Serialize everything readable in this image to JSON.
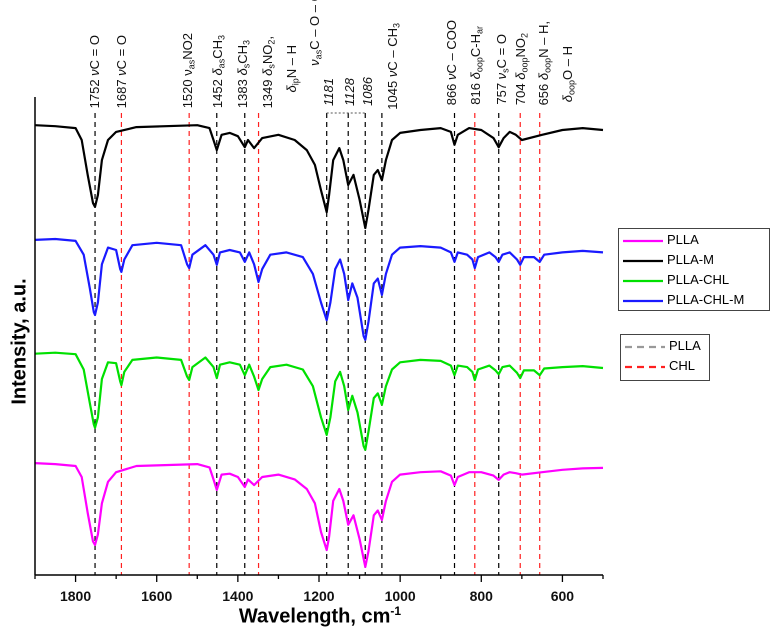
{
  "chart_data": {
    "type": "line",
    "xlabel": "Wavelength, cm",
    "xlabel_superscript": "-1",
    "ylabel": "Intensity, a.u.",
    "xlim": [
      1900,
      500
    ],
    "x_reversed": true,
    "ylim": [
      0,
      100
    ],
    "x_ticks": [
      "1800",
      "1600",
      "1400",
      "1200",
      "1000",
      "800",
      "600"
    ],
    "grid": false,
    "legend_placement": "right",
    "series": [
      {
        "name": "PLLA",
        "color": "#ff00ff",
        "x": [
          1900,
          1850,
          1800,
          1785,
          1770,
          1757,
          1752,
          1745,
          1735,
          1720,
          1700,
          1650,
          1500,
          1470,
          1460,
          1452,
          1440,
          1420,
          1400,
          1383,
          1375,
          1360,
          1340,
          1300,
          1260,
          1230,
          1210,
          1195,
          1181,
          1175,
          1165,
          1150,
          1140,
          1128,
          1115,
          1100,
          1086,
          1078,
          1065,
          1055,
          1045,
          1035,
          1020,
          1000,
          950,
          900,
          875,
          866,
          858,
          830,
          800,
          770,
          757,
          745,
          730,
          715,
          700,
          650,
          600,
          550,
          500
        ],
        "y": [
          23.4,
          23.2,
          22.8,
          20.5,
          13,
          7,
          6.3,
          8.5,
          15,
          19.5,
          21.5,
          22.8,
          23.2,
          22.5,
          20,
          17.8,
          21,
          21.2,
          20.5,
          18.4,
          20,
          18.8,
          20.5,
          21,
          20,
          18,
          15,
          9,
          5.2,
          8,
          15.5,
          18,
          15.5,
          10.5,
          12.5,
          7.5,
          1.7,
          5,
          12.5,
          13.5,
          11.5,
          15.5,
          19.5,
          21,
          21.5,
          21.7,
          20.8,
          18.8,
          20.5,
          21.5,
          21.5,
          20.8,
          19.9,
          21,
          21.5,
          21.3,
          21,
          21.5,
          22,
          22.3,
          22.4
        ]
      },
      {
        "name": "PLLA-M",
        "color": "#000000",
        "x": [
          1900,
          1850,
          1800,
          1785,
          1770,
          1757,
          1752,
          1745,
          1735,
          1720,
          1700,
          1650,
          1500,
          1470,
          1460,
          1452,
          1440,
          1420,
          1400,
          1383,
          1375,
          1360,
          1340,
          1300,
          1260,
          1230,
          1210,
          1195,
          1181,
          1175,
          1165,
          1150,
          1140,
          1128,
          1115,
          1100,
          1086,
          1078,
          1065,
          1055,
          1045,
          1035,
          1020,
          1000,
          950,
          900,
          875,
          866,
          858,
          830,
          800,
          770,
          757,
          745,
          730,
          715,
          700,
          650,
          600,
          550,
          500
        ],
        "y": [
          94.1,
          93.9,
          93.5,
          91,
          83.7,
          77.8,
          77,
          79.5,
          86.8,
          91,
          92.7,
          93.7,
          94.1,
          93.5,
          91,
          88.9,
          92.1,
          92.5,
          91.8,
          89.5,
          91,
          89.3,
          91.4,
          92.1,
          91,
          88.9,
          85.8,
          80.5,
          75.9,
          79.5,
          86.8,
          89.3,
          86.8,
          81.6,
          83.7,
          78.5,
          72.6,
          76.4,
          83.7,
          84.7,
          82.6,
          86.8,
          91,
          92.5,
          93.1,
          93.5,
          92.7,
          90,
          92.1,
          93.5,
          93.1,
          91.4,
          89.5,
          91.4,
          92.7,
          92.1,
          91,
          92.1,
          93.1,
          93.5,
          93.1
        ]
      },
      {
        "name": "PLLA-CHL",
        "color": "#00e000",
        "x": [
          1900,
          1850,
          1800,
          1780,
          1765,
          1755,
          1752,
          1745,
          1735,
          1720,
          1700,
          1690,
          1687,
          1680,
          1660,
          1600,
          1540,
          1525,
          1520,
          1512,
          1480,
          1460,
          1452,
          1444,
          1420,
          1395,
          1383,
          1372,
          1360,
          1349,
          1340,
          1320,
          1280,
          1240,
          1215,
          1195,
          1181,
          1172,
          1160,
          1148,
          1138,
          1128,
          1118,
          1105,
          1090,
          1086,
          1078,
          1065,
          1055,
          1045,
          1035,
          1020,
          1000,
          950,
          900,
          875,
          866,
          858,
          835,
          822,
          816,
          808,
          780,
          765,
          757,
          748,
          730,
          712,
          704,
          695,
          670,
          656,
          645,
          600,
          550,
          500
        ],
        "y": [
          46.3,
          46.5,
          46.2,
          43,
          36,
          31.5,
          30.8,
          33,
          41,
          44.5,
          44.3,
          40.5,
          39.7,
          42.5,
          45,
          45.5,
          45,
          41.5,
          40.8,
          43.5,
          45.5,
          43.5,
          41.2,
          44,
          44.5,
          44,
          41.8,
          44,
          41.5,
          38.7,
          41,
          43.5,
          44,
          43,
          39.5,
          33,
          29.3,
          33,
          40.5,
          42.5,
          39.5,
          34.5,
          37.5,
          34,
          27,
          26.2,
          30,
          37,
          38,
          35.6,
          39.5,
          43,
          44.5,
          45,
          44.8,
          43.8,
          41.8,
          43.8,
          43.5,
          42.5,
          40.8,
          43,
          43.8,
          42.8,
          42,
          43.5,
          43.8,
          42.3,
          41.2,
          42.8,
          42.8,
          41.8,
          43.2,
          43.5,
          43.7,
          43.3
        ]
      },
      {
        "name": "PLLA-CHL-M",
        "color": "#1a1aff",
        "x": [
          1900,
          1850,
          1800,
          1780,
          1765,
          1755,
          1752,
          1745,
          1735,
          1720,
          1700,
          1690,
          1687,
          1680,
          1660,
          1600,
          1540,
          1525,
          1520,
          1512,
          1480,
          1460,
          1452,
          1444,
          1420,
          1395,
          1383,
          1372,
          1360,
          1349,
          1340,
          1320,
          1280,
          1240,
          1215,
          1195,
          1181,
          1172,
          1160,
          1148,
          1138,
          1128,
          1118,
          1105,
          1090,
          1086,
          1078,
          1065,
          1055,
          1045,
          1035,
          1020,
          1000,
          950,
          900,
          875,
          866,
          858,
          835,
          822,
          816,
          808,
          780,
          765,
          757,
          748,
          730,
          712,
          704,
          695,
          670,
          656,
          645,
          600,
          550,
          500
        ],
        "y": [
          70.1,
          70.3,
          69.9,
          67,
          60,
          55,
          54.4,
          57,
          65,
          68.5,
          68,
          64,
          63.4,
          66,
          69,
          69.5,
          69,
          65,
          64.2,
          67,
          69,
          67,
          64.9,
          67.5,
          68,
          67.5,
          65.5,
          67.5,
          65,
          61.3,
          64,
          67,
          67.5,
          66.5,
          63,
          57,
          53.3,
          57,
          64,
          66,
          63,
          57.5,
          61,
          58,
          50,
          49.2,
          53,
          61,
          62,
          58.6,
          63,
          67,
          68.5,
          68.8,
          68.5,
          67.5,
          65.5,
          67.5,
          67,
          66,
          64.2,
          66.5,
          67.5,
          66.5,
          65.5,
          67,
          67.5,
          66,
          64.9,
          66.5,
          66.5,
          65.5,
          67,
          67.5,
          67.8,
          67.5
        ]
      }
    ],
    "reference_lines": {
      "PLLA": {
        "color": "#000000",
        "legend_color": "#999999",
        "x": [
          1752,
          1452,
          1383,
          1181,
          1128,
          1086,
          1045,
          866,
          757
        ]
      },
      "CHL": {
        "color": "#ff2020",
        "x": [
          1687,
          1520,
          1349,
          816,
          704,
          656
        ]
      }
    },
    "dotted_box_x": [
      1181,
      1086
    ],
    "legend": [
      "PLLA",
      "PLLA-M",
      "PLLA-CHL",
      "PLLA-CHL-M"
    ],
    "legend2": [
      "PLLA",
      "CHL"
    ],
    "annotations": [
      {
        "segs": [
          [
            "1752 ",
            ""
          ],
          [
            "ν",
            "i"
          ],
          [
            "C = O",
            ""
          ]
        ]
      },
      {
        "segs": [
          [
            "1687 ",
            ""
          ],
          [
            "ν",
            "i"
          ],
          [
            "C = O",
            ""
          ]
        ]
      },
      {
        "segs": [
          [
            "1520  ",
            ""
          ],
          [
            "ν",
            ""
          ],
          [
            "as",
            "sub"
          ],
          [
            "NO2",
            ""
          ]
        ]
      },
      {
        "segs": [
          [
            "1452 ",
            ""
          ],
          [
            "δ",
            "i"
          ],
          [
            "as",
            "sub"
          ],
          [
            "CH",
            ""
          ],
          [
            "3",
            "sub"
          ]
        ]
      },
      {
        "segs": [
          [
            "1383 ",
            ""
          ],
          [
            "δ",
            "i"
          ],
          [
            "s",
            "sub"
          ],
          [
            "CH",
            ""
          ],
          [
            "3",
            "sub"
          ]
        ]
      },
      {
        "segs": [
          [
            "1349 ",
            ""
          ],
          [
            "δ",
            "i"
          ],
          [
            "s",
            "sub"
          ],
          [
            "NO",
            ""
          ],
          [
            "2",
            "sub"
          ],
          [
            ",",
            ""
          ]
        ]
      },
      {
        "segs": [
          [
            "δ",
            "i"
          ],
          [
            "ip",
            "sub"
          ],
          [
            "N – H",
            ""
          ]
        ]
      },
      {
        "segs": [
          [
            "ν",
            "i"
          ],
          [
            "as",
            "sub"
          ],
          [
            "C – O – C",
            ""
          ]
        ]
      },
      {
        "segs": [
          [
            "1181",
            "i"
          ]
        ]
      },
      {
        "segs": [
          [
            "1128",
            "i"
          ]
        ]
      },
      {
        "segs": [
          [
            "1086",
            "i"
          ]
        ]
      },
      {
        "segs": [
          [
            "1045 ",
            ""
          ],
          [
            "ν",
            "i"
          ],
          [
            "C – CH",
            ""
          ],
          [
            "3",
            "sub"
          ]
        ]
      },
      {
        "segs": [
          [
            "866 ",
            ""
          ],
          [
            "ν",
            "i"
          ],
          [
            "C – COO",
            ""
          ]
        ]
      },
      {
        "segs": [
          [
            "816 ",
            ""
          ],
          [
            "δ",
            "i"
          ],
          [
            "oop",
            "sub"
          ],
          [
            "C-H",
            ""
          ],
          [
            "ar",
            "sub"
          ]
        ]
      },
      {
        "segs": [
          [
            "757 ",
            ""
          ],
          [
            "ν",
            "i"
          ],
          [
            "s",
            "sub"
          ],
          [
            "C = O",
            ""
          ]
        ]
      },
      {
        "segs": [
          [
            "704 ",
            ""
          ],
          [
            "δ",
            "i"
          ],
          [
            "oop",
            "sub"
          ],
          [
            "NO",
            ""
          ],
          [
            "2",
            "sub"
          ]
        ]
      },
      {
        "segs": [
          [
            "656 ",
            ""
          ],
          [
            "δ",
            "i"
          ],
          [
            "oop",
            "sub"
          ],
          [
            "N – H,",
            ""
          ]
        ]
      },
      {
        "segs": [
          [
            "δ",
            "i"
          ],
          [
            "oop",
            "sub"
          ],
          [
            "O – H",
            ""
          ]
        ]
      }
    ]
  }
}
